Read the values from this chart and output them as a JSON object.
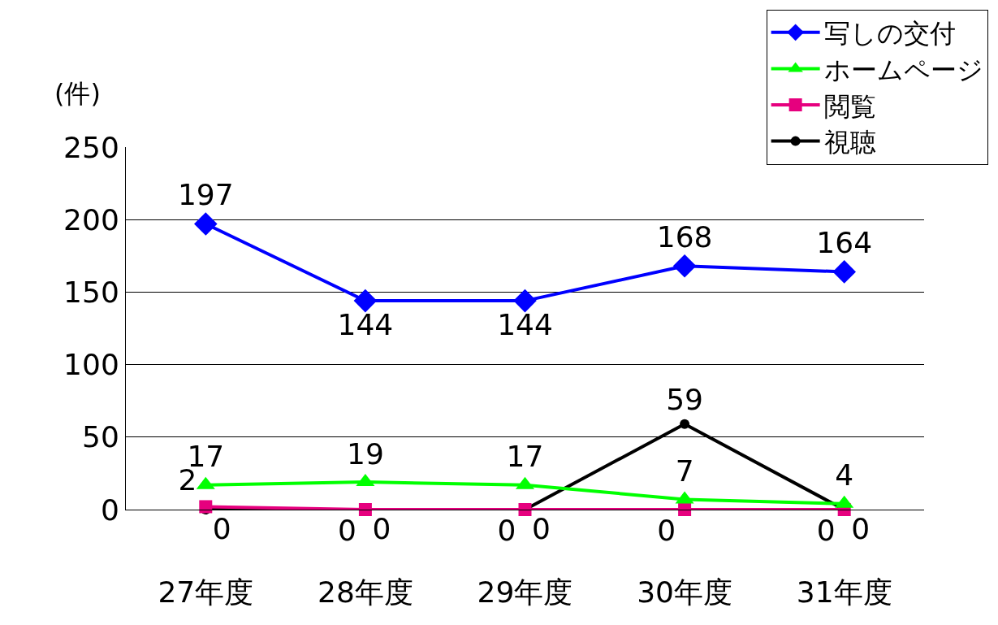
{
  "chart_data": {
    "type": "line",
    "ylabel": "(件)",
    "categories": [
      "27年度",
      "28年度",
      "29年度",
      "30年度",
      "31年度"
    ],
    "series": [
      {
        "name": "写しの交付",
        "color": "#0000ff",
        "marker": "diamond",
        "values": [
          197,
          144,
          144,
          168,
          164
        ]
      },
      {
        "name": "ホームページ",
        "color": "#00ff00",
        "marker": "triangle",
        "values": [
          17,
          19,
          17,
          7,
          4
        ]
      },
      {
        "name": "閲覧",
        "color": "#e6007e",
        "marker": "square",
        "values": [
          2,
          0,
          0,
          0,
          0
        ]
      },
      {
        "name": "視聴",
        "color": "#000000",
        "marker": "circle",
        "values": [
          0,
          0,
          0,
          59,
          0
        ]
      }
    ],
    "ylim": [
      0,
      250
    ],
    "yticks": [
      0,
      50,
      100,
      150,
      200,
      250
    ],
    "grid": "y",
    "legend": "top right",
    "data_labels": true,
    "line_style": "solid"
  }
}
